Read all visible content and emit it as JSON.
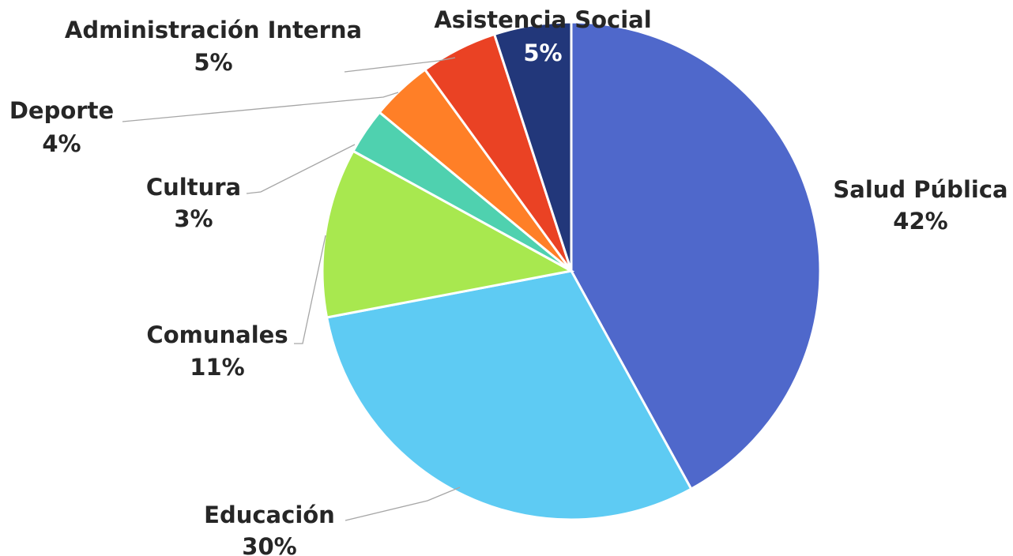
{
  "chart_data": {
    "type": "pie",
    "title": "",
    "categories": [
      "Salud Pública",
      "Educación",
      "Comunales",
      "Cultura",
      "Deporte",
      "Administración Interna",
      "Asistencia Social"
    ],
    "values": [
      42,
      30,
      11,
      3,
      4,
      5,
      5
    ],
    "labels": [
      "42%",
      "30%",
      "11%",
      "3%",
      "4%",
      "5%",
      "5%"
    ],
    "colors": [
      "#4F68CB",
      "#5ECBF3",
      "#A8E84F",
      "#4FD1AF",
      "#FF7F27",
      "#EA4224",
      "#22377A"
    ],
    "start_angle_deg": 0,
    "direction": "clockwise",
    "legend": "none (data labels with leader lines)"
  }
}
